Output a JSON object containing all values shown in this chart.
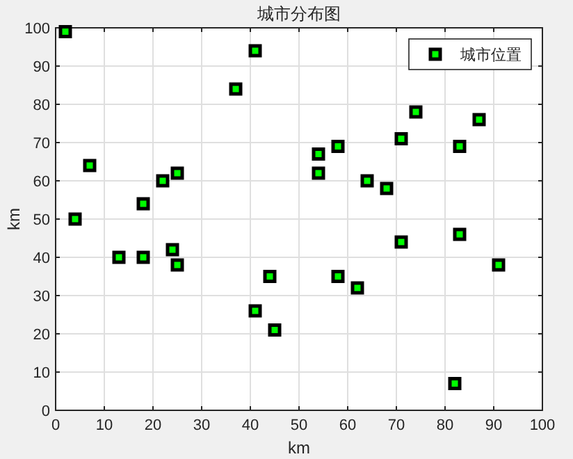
{
  "chart_data": {
    "type": "scatter",
    "title": "城市分布图",
    "xlabel": "km",
    "ylabel": "km",
    "x": [
      2,
      4,
      7,
      13,
      18,
      18,
      22,
      24,
      25,
      25,
      37,
      41,
      41,
      44,
      45,
      54,
      54,
      58,
      58,
      62,
      64,
      68,
      71,
      71,
      74,
      82,
      83,
      83,
      87,
      91
    ],
    "series": [
      {
        "name": "城市位置",
        "color": "#00ff00",
        "values": [
          99,
          50,
          64,
          40,
          40,
          54,
          60,
          42,
          38,
          62,
          84,
          94,
          26,
          35,
          21,
          67,
          62,
          69,
          35,
          32,
          60,
          58,
          71,
          44,
          78,
          7,
          69,
          46,
          76,
          38
        ]
      }
    ],
    "xlim": [
      0,
      100
    ],
    "ylim": [
      0,
      100
    ],
    "xticks": [
      0,
      10,
      20,
      30,
      40,
      50,
      60,
      70,
      80,
      90,
      100
    ],
    "yticks": [
      0,
      10,
      20,
      30,
      40,
      50,
      60,
      70,
      80,
      90,
      100
    ],
    "grid": true,
    "legend": "top right",
    "marker": "square"
  }
}
